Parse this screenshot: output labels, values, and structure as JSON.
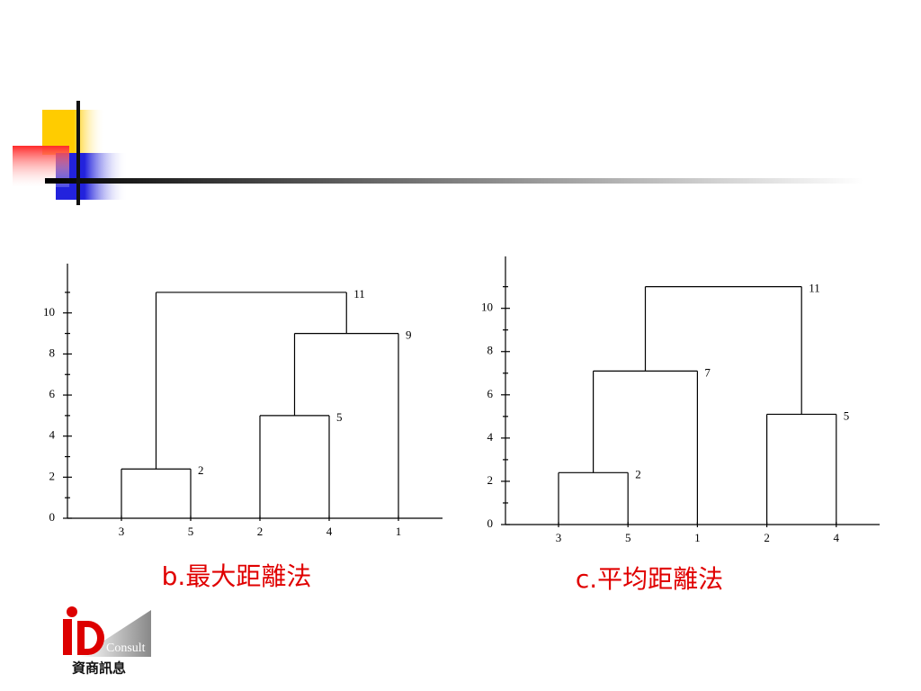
{
  "chart_data": [
    {
      "type": "dendrogram",
      "title": "b.最大距離法",
      "color": "#e00000",
      "leaves": [
        "3",
        "5",
        "2",
        "4",
        "1"
      ],
      "merges": [
        [
          0,
          1
        ],
        [
          2,
          3
        ],
        [
          6,
          4
        ],
        [
          5,
          7
        ]
      ],
      "values": [
        2.4,
        5,
        9,
        11
      ],
      "value_labels": [
        "2",
        "5",
        "9",
        "11"
      ],
      "ylim": [
        0,
        12.4
      ],
      "yticks": [
        0,
        2,
        4,
        6,
        8,
        10
      ]
    },
    {
      "type": "dendrogram",
      "title": "c.平均距離法",
      "color": "#e00000",
      "leaves": [
        "3",
        "5",
        "1",
        "2",
        "4"
      ],
      "merges": [
        [
          0,
          1
        ],
        [
          3,
          4
        ],
        [
          5,
          2
        ],
        [
          7,
          6
        ]
      ],
      "values": [
        2.4,
        5.1,
        7.1,
        11
      ],
      "value_labels": [
        "2",
        "5",
        "7",
        "11"
      ],
      "ylim": [
        0,
        12.4
      ],
      "yticks": [
        0,
        2,
        4,
        6,
        8,
        10
      ]
    }
  ],
  "logo": {
    "name": "Consult",
    "subtitle": "資商訊息"
  }
}
